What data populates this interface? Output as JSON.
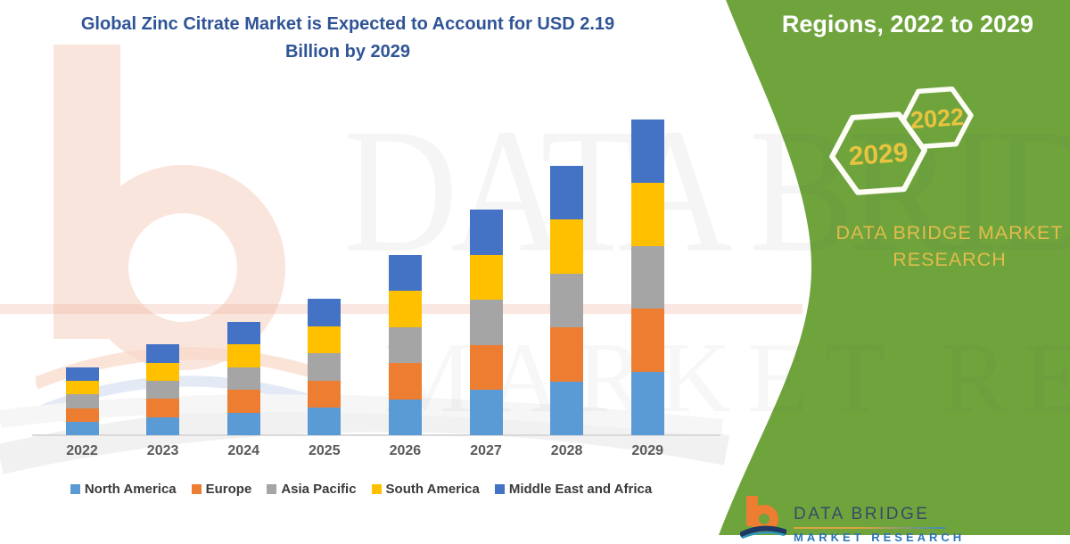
{
  "title": {
    "line1": "Global Zinc Citrate Market is Expected to Account for USD 2.19",
    "line2": "Billion by 2029"
  },
  "side_panel": {
    "heading": "Regions, 2022 to 2029",
    "hexagons": [
      {
        "label": "2029"
      },
      {
        "label": "2022"
      }
    ],
    "brand_line1": "DATA BRIDGE MARKET",
    "brand_line2": "RESEARCH",
    "panel_color": "#6FA43D",
    "accent_text_color": "#E2BC4C"
  },
  "watermark": {
    "line1": "DATA BRIDGE",
    "line2": "MARKET RESEARCH"
  },
  "footer": {
    "brand": "DATA BRIDGE",
    "sub": "MARKET RESEARCH"
  },
  "chart_data": {
    "type": "bar",
    "stacked": true,
    "title": "Global Zinc Citrate Market is Expected to Account for USD 2.19 Billion by 2029",
    "unit": "USD Billion",
    "values_estimated_from_pixels": true,
    "categories": [
      "2022",
      "2023",
      "2024",
      "2025",
      "2026",
      "2027",
      "2028",
      "2029"
    ],
    "series": [
      {
        "name": "North America",
        "color": "#5B9BD5",
        "values": [
          0.094,
          0.126,
          0.157,
          0.189,
          0.25,
          0.313,
          0.374,
          0.438
        ]
      },
      {
        "name": "Europe",
        "color": "#ED7D31",
        "values": [
          0.094,
          0.126,
          0.157,
          0.189,
          0.25,
          0.313,
          0.374,
          0.438
        ]
      },
      {
        "name": "Asia Pacific",
        "color": "#A5A5A5",
        "values": [
          0.094,
          0.126,
          0.157,
          0.189,
          0.25,
          0.313,
          0.374,
          0.438
        ]
      },
      {
        "name": "South America",
        "color": "#FFC000",
        "values": [
          0.094,
          0.126,
          0.157,
          0.189,
          0.25,
          0.313,
          0.374,
          0.438
        ]
      },
      {
        "name": "Middle East and Africa",
        "color": "#4472C4",
        "values": [
          0.094,
          0.126,
          0.157,
          0.189,
          0.25,
          0.313,
          0.374,
          0.438
        ]
      }
    ],
    "totals": [
      0.47,
      0.63,
      0.79,
      0.95,
      1.25,
      1.57,
      1.87,
      2.19
    ],
    "ylim": [
      0,
      2.4
    ],
    "gridlines": false,
    "y_axis_visible": false,
    "legend_position": "bottom"
  }
}
